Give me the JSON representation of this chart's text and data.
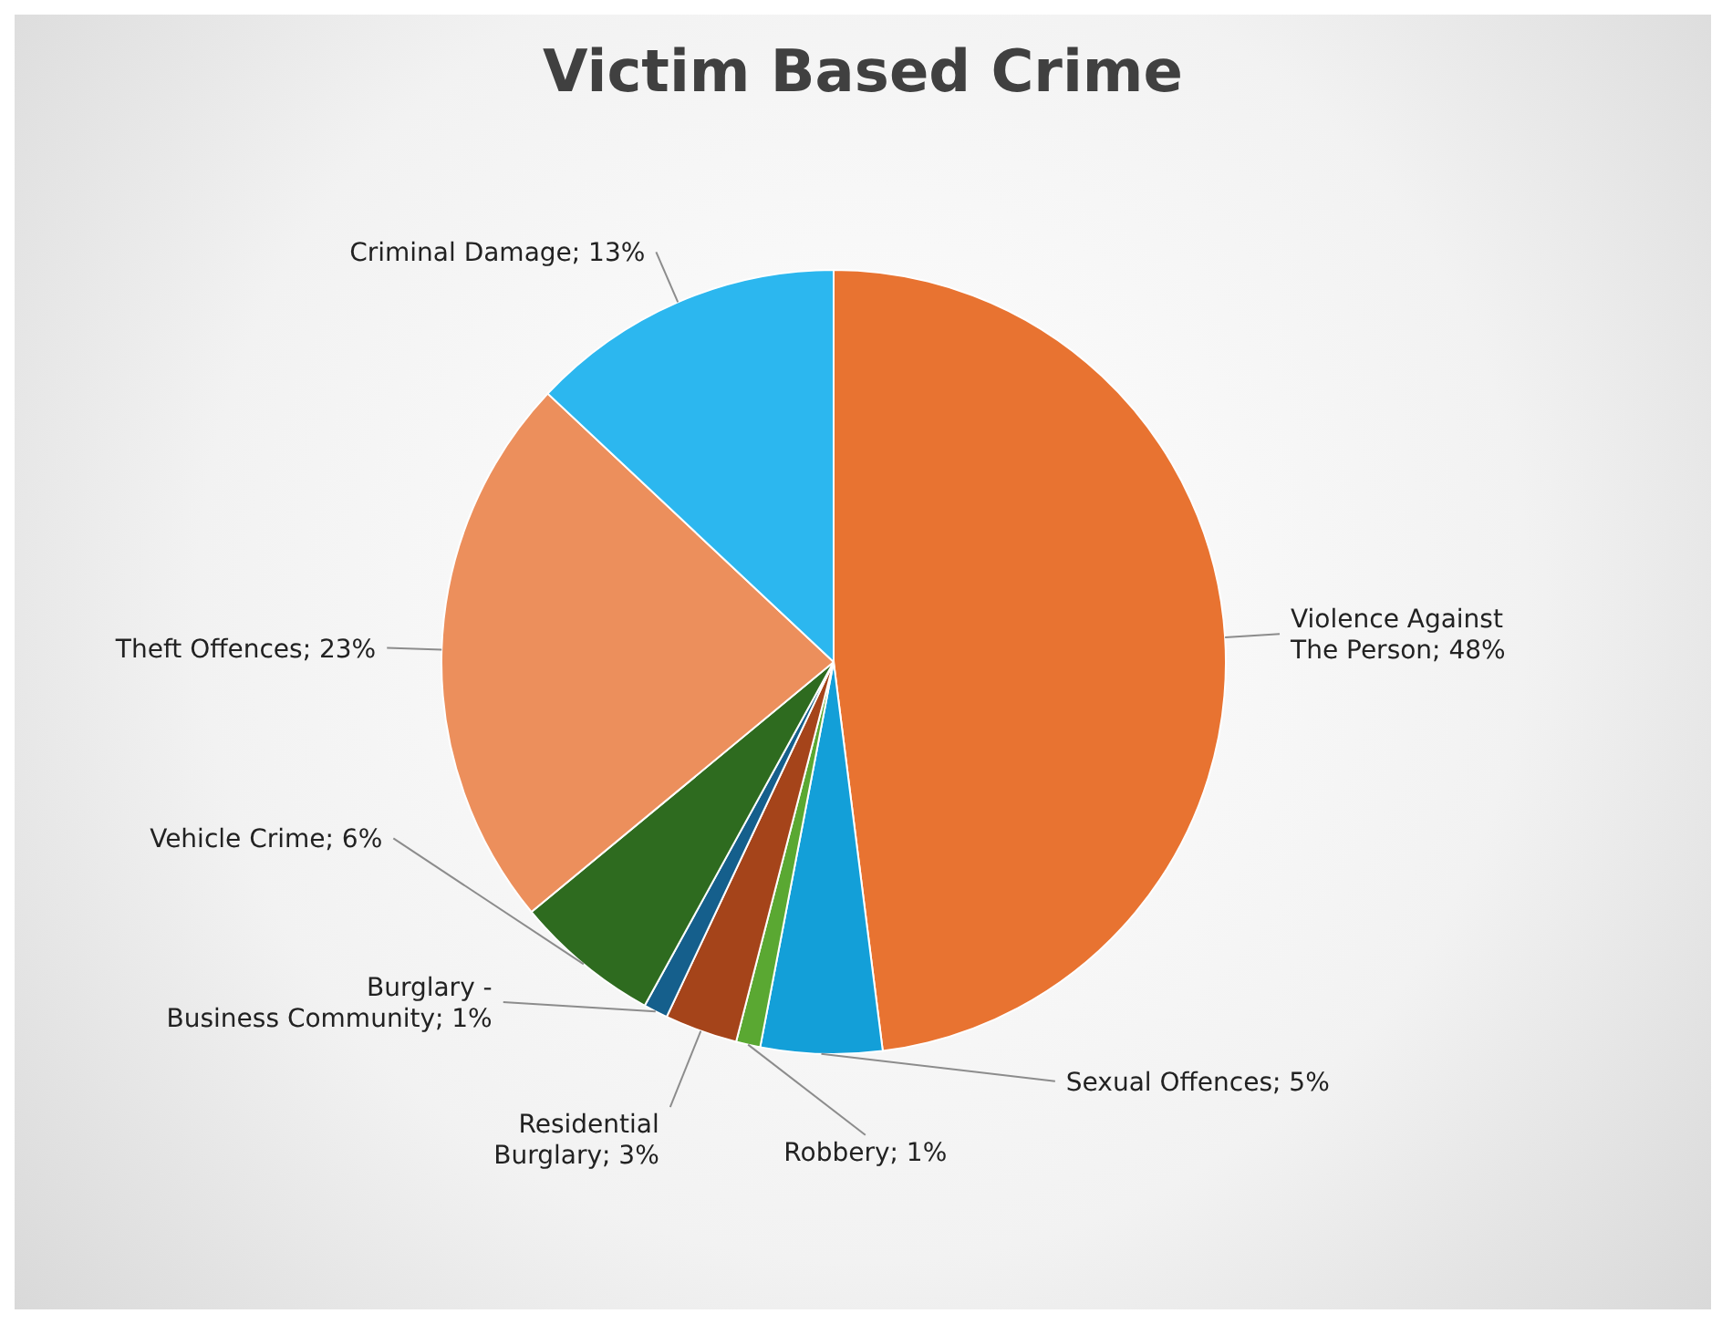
{
  "chart_data": {
    "type": "pie",
    "title": "Victim Based Crime",
    "categories": [
      "Violence Against The Person",
      "Sexual Offences",
      "Robbery",
      "Residential Burglary",
      "Burglary - Business Community",
      "Vehicle Crime",
      "Theft Offences",
      "Criminal Damage"
    ],
    "values": [
      48,
      5,
      1,
      3,
      1,
      6,
      23,
      13
    ],
    "value_labels": [
      "48%",
      "5%",
      "1%",
      "3%",
      "1%",
      "6%",
      "23%",
      "13%"
    ],
    "colors": [
      "#e87331",
      "#139fd8",
      "#5aa832",
      "#a5441a",
      "#155f8c",
      "#2e6b1f",
      "#ec8f5c",
      "#2cb7ef"
    ]
  }
}
